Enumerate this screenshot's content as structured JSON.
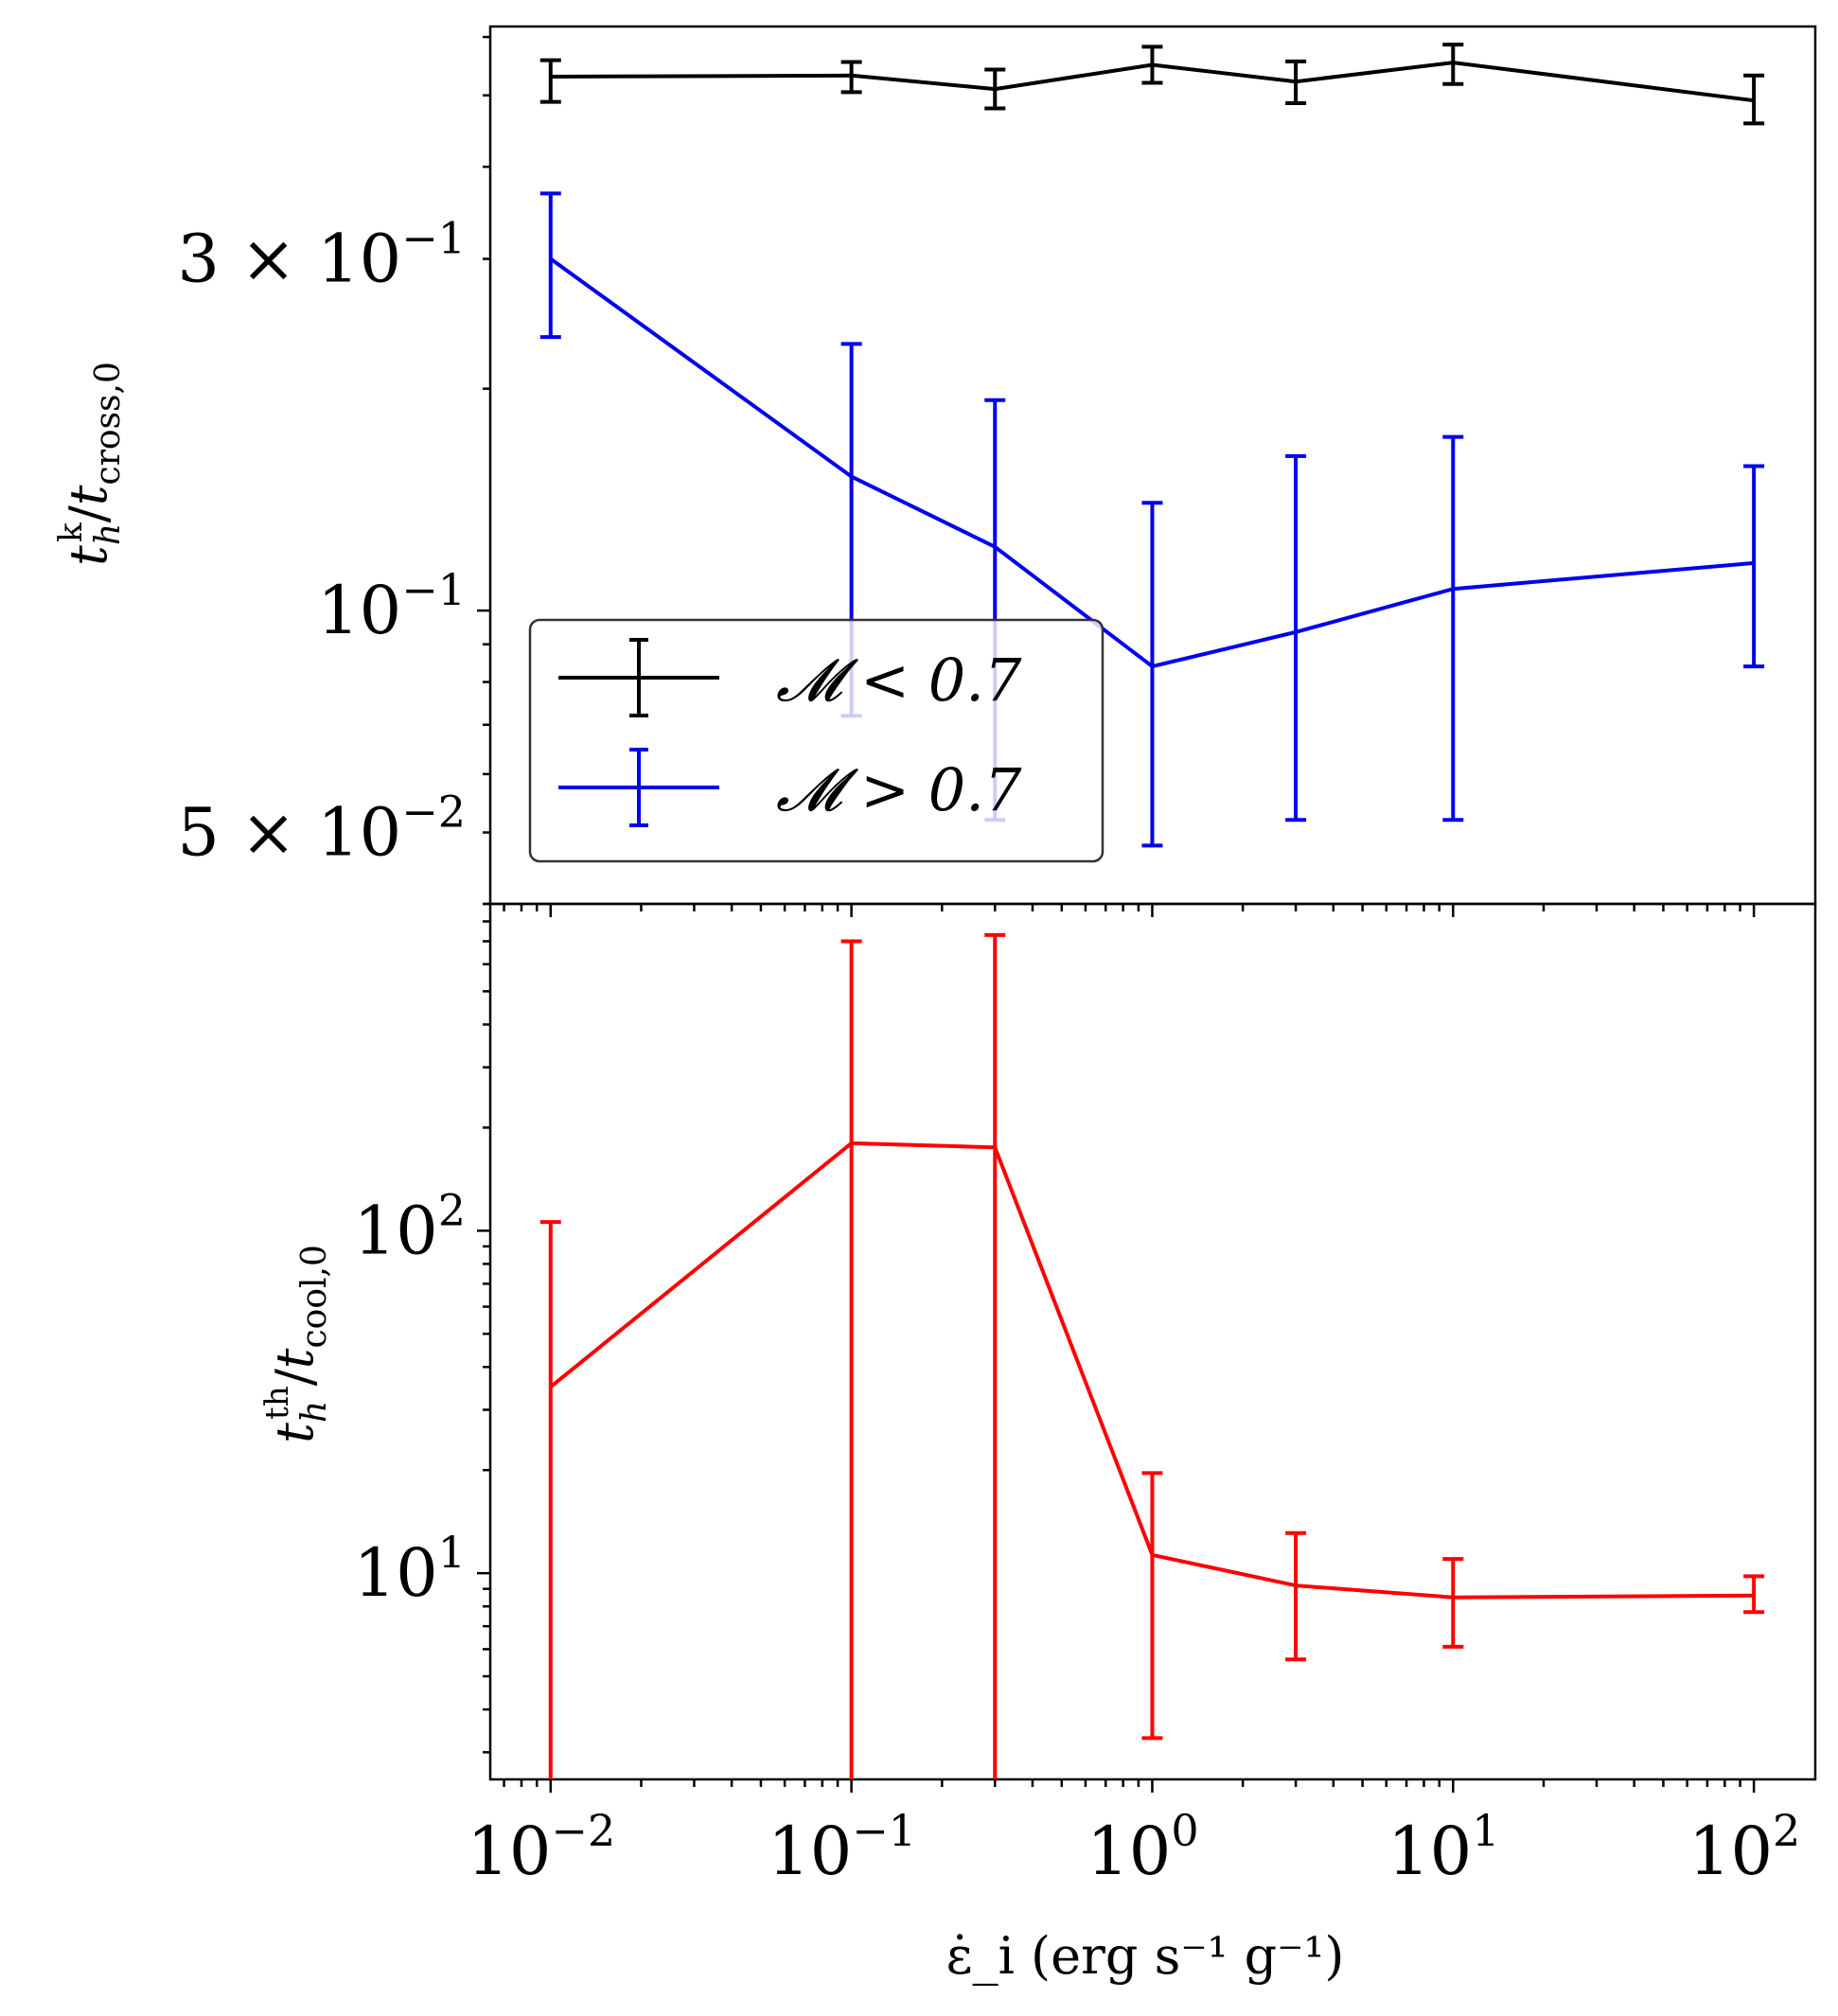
{
  "chart_data": [
    {
      "type": "line",
      "panel": "top",
      "xscale": "log",
      "yscale": "log",
      "x": [
        0.01,
        0.1,
        0.3,
        1,
        3,
        10,
        100
      ],
      "xlim": [
        0.0063,
        160
      ],
      "ylim": [
        0.04,
        0.62
      ],
      "ylabel": "t_h^k / t_cross,0",
      "ytick_labels": [
        {
          "value": 0.3,
          "base": "3 × 10",
          "exp": "−1"
        },
        {
          "value": 0.1,
          "base": "10",
          "exp": "−1"
        },
        {
          "value": 0.05,
          "base": "5 × 10",
          "exp": "−2"
        }
      ],
      "series": [
        {
          "name": "𝓜 < 0.7",
          "color": "#000000",
          "values": [
            0.53,
            0.532,
            0.51,
            0.55,
            0.522,
            0.554,
            0.492
          ],
          "err_low": [
            0.49,
            0.505,
            0.48,
            0.52,
            0.488,
            0.518,
            0.458
          ],
          "err_high": [
            0.558,
            0.555,
            0.542,
            0.582,
            0.556,
            0.586,
            0.532
          ]
        },
        {
          "name": "𝓜 > 0.7",
          "color": "#0000ee",
          "values": [
            0.3,
            0.152,
            0.122,
            0.084,
            0.0935,
            0.107,
            0.116
          ],
          "err_low": [
            0.235,
            0.072,
            0.052,
            0.048,
            0.052,
            0.052,
            0.084
          ],
          "err_high": [
            0.368,
            0.23,
            0.193,
            0.14,
            0.162,
            0.172,
            0.157
          ]
        }
      ],
      "legend": {
        "position": "lower-left",
        "entries": [
          "𝓜 < 0.7",
          "𝓜 > 0.7"
        ]
      }
    },
    {
      "type": "line",
      "panel": "bottom",
      "xscale": "log",
      "yscale": "log",
      "x": [
        0.01,
        0.1,
        0.3,
        1,
        3,
        10,
        100
      ],
      "xlim": [
        0.0063,
        160
      ],
      "ylim": [
        2.5,
        900
      ],
      "xlabel": "ε̇_i (erg s⁻¹ g⁻¹)",
      "ylabel": "t_h^th / t_cool,0",
      "xtick_labels": [
        {
          "value": 0.01,
          "base": "10",
          "exp": "−2"
        },
        {
          "value": 0.1,
          "base": "10",
          "exp": "−1"
        },
        {
          "value": 1,
          "base": "10",
          "exp": "0"
        },
        {
          "value": 10,
          "base": "10",
          "exp": "1"
        },
        {
          "value": 100,
          "base": "10",
          "exp": "2"
        }
      ],
      "ytick_labels": [
        {
          "value": 100,
          "base": "10",
          "exp": "2"
        },
        {
          "value": 10,
          "base": "10",
          "exp": "1"
        }
      ],
      "series": [
        {
          "name": "t_h^th",
          "color": "#ff0000",
          "values": [
            35,
            180,
            175,
            11.3,
            9.2,
            8.5,
            8.6
          ],
          "err_low": [
            2.5,
            2.5,
            2.5,
            3.3,
            5.6,
            6.1,
            7.7
          ],
          "err_high": [
            106,
            700,
            730,
            19.6,
            13.1,
            11.0,
            9.8
          ]
        }
      ]
    }
  ]
}
